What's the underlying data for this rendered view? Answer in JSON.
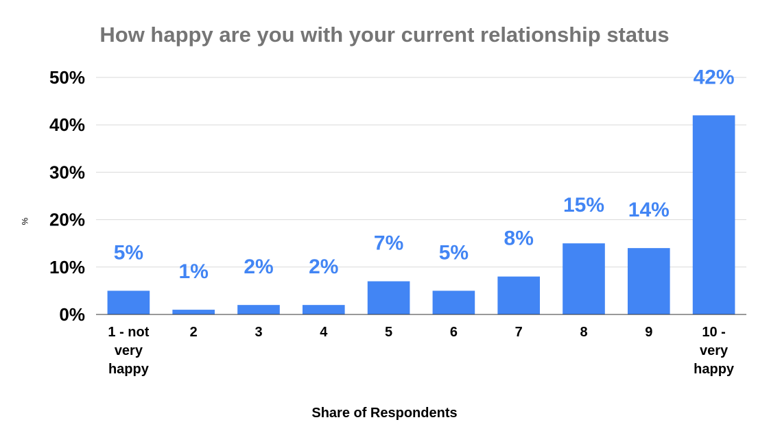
{
  "chart_data": {
    "type": "bar",
    "title": "How happy are you with your current relationship status",
    "xlabel": "Share of Respondents",
    "ylabel": "%",
    "categories": [
      "1 - not very happy",
      "2",
      "3",
      "4",
      "5",
      "6",
      "7",
      "8",
      "9",
      "10 - very happy"
    ],
    "category_lines": [
      [
        "1 - not",
        "very",
        "happy"
      ],
      [
        "2"
      ],
      [
        "3"
      ],
      [
        "4"
      ],
      [
        "5"
      ],
      [
        "6"
      ],
      [
        "7"
      ],
      [
        "8"
      ],
      [
        "9"
      ],
      [
        "10 -",
        "very",
        "happy"
      ]
    ],
    "values": [
      5,
      1,
      2,
      2,
      7,
      5,
      8,
      15,
      14,
      42
    ],
    "data_labels": [
      "5%",
      "1%",
      "2%",
      "2%",
      "7%",
      "5%",
      "8%",
      "15%",
      "14%",
      "42%"
    ],
    "yticks": [
      0,
      10,
      20,
      30,
      40,
      50
    ],
    "ytick_labels": [
      "0%",
      "10%",
      "20%",
      "30%",
      "40%",
      "50%"
    ],
    "ylim": [
      0,
      50
    ],
    "grid": true,
    "legend": "none",
    "bar_color": "#4285f4",
    "label_color": "#4285f4",
    "title_color": "#757575"
  }
}
